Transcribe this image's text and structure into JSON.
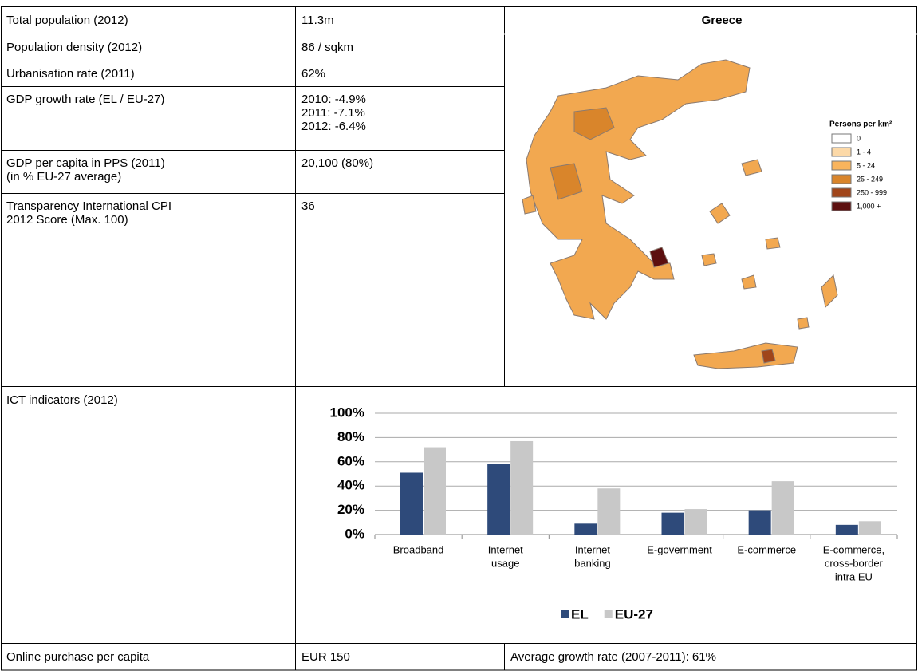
{
  "table": {
    "rows": [
      [
        "Total population (2012)",
        [
          "11.3m"
        ]
      ],
      [
        "Population density (2012)",
        [
          "86 / sqkm"
        ]
      ],
      [
        "Urbanisation rate (2011)",
        [
          "62%"
        ]
      ],
      [
        "GDP growth rate (EL / EU-27)",
        [
          "2010: -4.9%",
          "2011: -7.1%",
          "2012: -6.4%"
        ]
      ],
      [
        "GDP per capita in PPS (2011)\n(in % EU-27 average)",
        [
          "20,100 (80%)"
        ]
      ],
      [
        "Transparency International CPI\n2012 Score (Max. 100)",
        [
          "36"
        ]
      ]
    ],
    "ict_label": "ICT indicators (2012)",
    "footer": [
      "Online purchase per capita",
      "EUR 150",
      "Average growth rate (2007-2011): 61%"
    ]
  },
  "map": {
    "title": "Greece",
    "legend_title": "Persons per km²",
    "legend": [
      {
        "label": "0",
        "color": "#ffffff"
      },
      {
        "label": "1 - 4",
        "color": "#fcd9a8"
      },
      {
        "label": "5 - 24",
        "color": "#f9b45c"
      },
      {
        "label": "25 - 249",
        "color": "#d9852b"
      },
      {
        "label": "250 - 999",
        "color": "#a0451a"
      },
      {
        "label": "1,000 +",
        "color": "#5c0f0f"
      }
    ]
  },
  "chart_data": {
    "type": "bar",
    "categories": [
      [
        "Broadband"
      ],
      [
        "Internet",
        "usage"
      ],
      [
        "Internet",
        "banking"
      ],
      [
        "E-government"
      ],
      [
        "E-commerce"
      ],
      [
        "E-commerce,",
        "cross-border",
        "intra EU"
      ]
    ],
    "series": [
      {
        "name": "EL",
        "color": "#2e4a7a",
        "values": [
          51,
          58,
          9,
          18,
          20,
          8
        ]
      },
      {
        "name": "EU-27",
        "color": "#c8c8c8",
        "values": [
          72,
          77,
          38,
          21,
          44,
          11
        ]
      }
    ],
    "ylim": [
      0,
      100
    ],
    "yticks": [
      {
        "value": 0,
        "label": "0%"
      },
      {
        "value": 20,
        "label": "20%"
      },
      {
        "value": 40,
        "label": "40%"
      },
      {
        "value": 60,
        "label": "60%"
      },
      {
        "value": 80,
        "label": "80%"
      },
      {
        "value": 100,
        "label": "100%"
      }
    ],
    "grid": true,
    "legend": "bottom"
  }
}
